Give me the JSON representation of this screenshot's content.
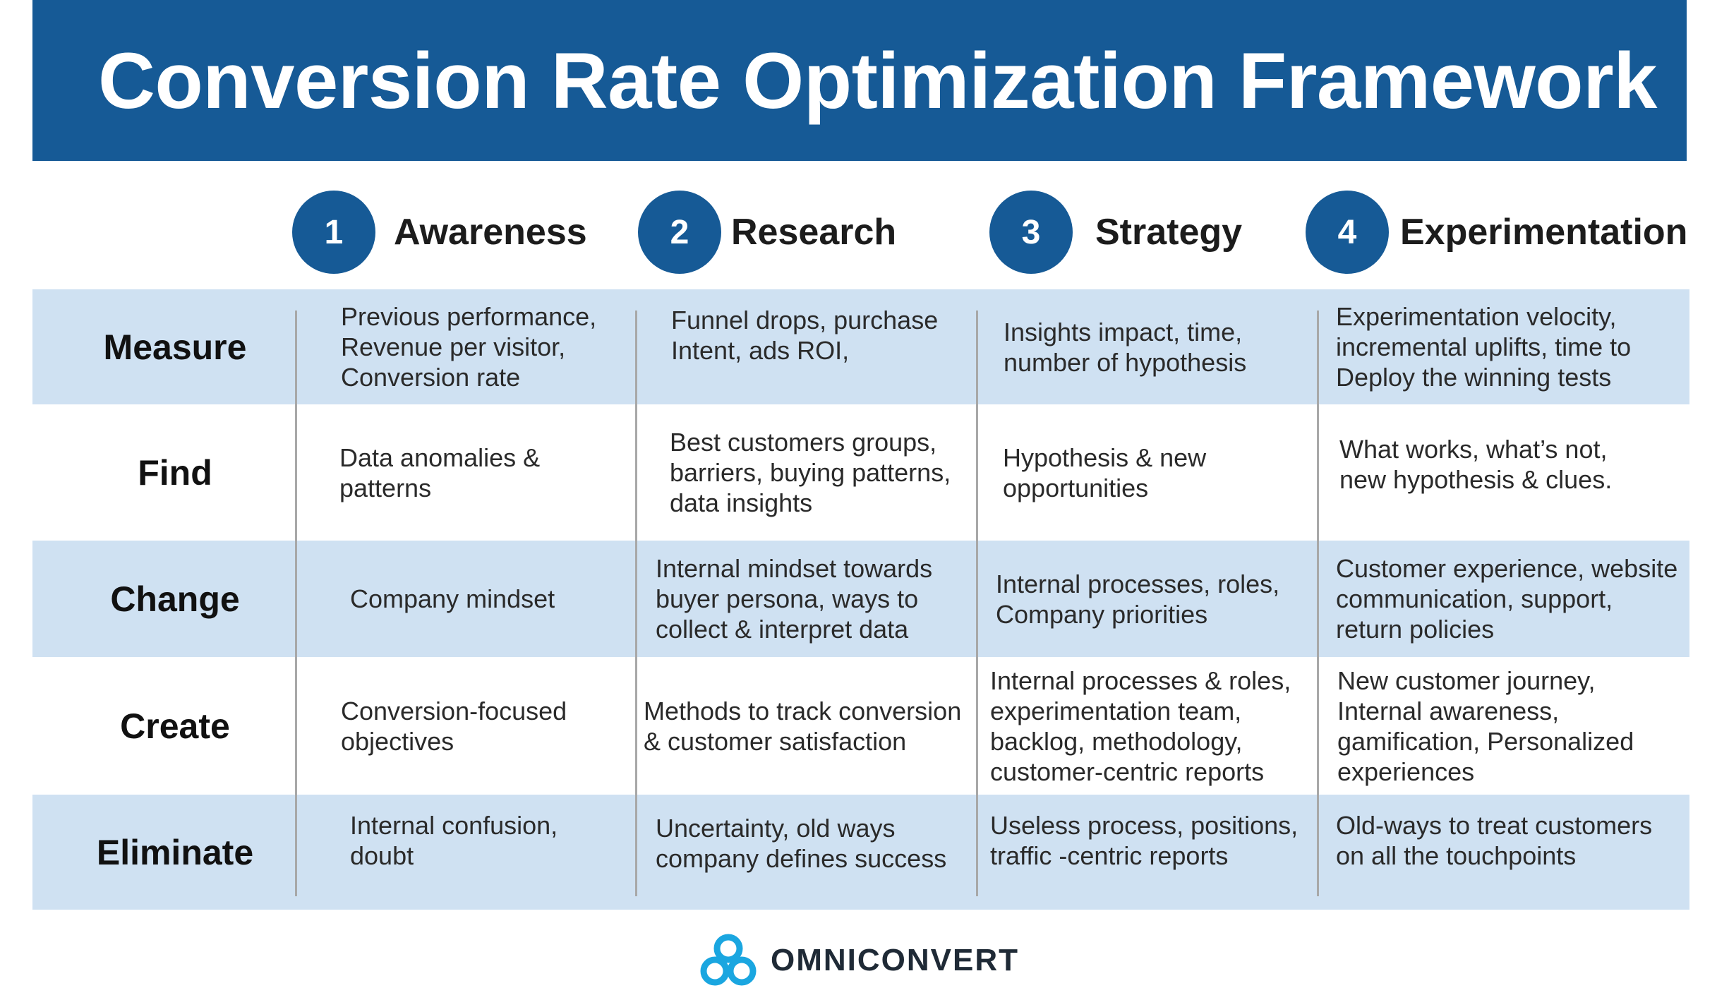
{
  "title": "Conversion Rate Optimization Framework",
  "colors": {
    "brand_blue": "#165a96",
    "row_shade": "#cfe1f2",
    "logo_blue": "#1aa6e0"
  },
  "stages": [
    {
      "number": "1",
      "label": "Awareness"
    },
    {
      "number": "2",
      "label": "Research"
    },
    {
      "number": "3",
      "label": "Strategy"
    },
    {
      "number": "4",
      "label": "Experimentation"
    }
  ],
  "rows": [
    {
      "label": "Measure",
      "cells": [
        "Previous performance,\nRevenue per visitor,\nConversion rate",
        "Funnel drops, purchase\nIntent, ads ROI,",
        "Insights impact, time,\nnumber of hypothesis",
        "Experimentation velocity,\nincremental uplifts, time to\nDeploy the winning tests"
      ]
    },
    {
      "label": "Find",
      "cells": [
        "Data anomalies &\npatterns",
        "Best customers groups,\nbarriers, buying patterns,\ndata insights",
        "Hypothesis & new\nopportunities",
        "What works, what’s not,\nnew hypothesis & clues."
      ]
    },
    {
      "label": "Change",
      "cells": [
        "Company mindset",
        "Internal mindset towards\nbuyer persona, ways to\ncollect & interpret data",
        "Internal processes, roles,\nCompany priorities",
        "Customer experience, website\ncommunication, support,\nreturn policies"
      ]
    },
    {
      "label": "Create",
      "cells": [
        "Conversion-focused\nobjectives",
        "Methods to track conversion\n& customer satisfaction",
        "Internal processes & roles,\nexperimentation team,\nbacklog, methodology,\ncustomer-centric reports",
        "New customer journey,\nInternal awareness,\ngamification, Personalized\nexperiences"
      ]
    },
    {
      "label": "Eliminate",
      "cells": [
        "Internal confusion,\ndoubt",
        "Uncertainty, old ways\ncompany defines success",
        "Useless process, positions,\ntraffic -centric reports",
        "Old-ways to treat customers\non all the touchpoints"
      ]
    }
  ],
  "logo": {
    "icon": "omniconvert-logo-icon",
    "text": "OMNICONVERT"
  }
}
